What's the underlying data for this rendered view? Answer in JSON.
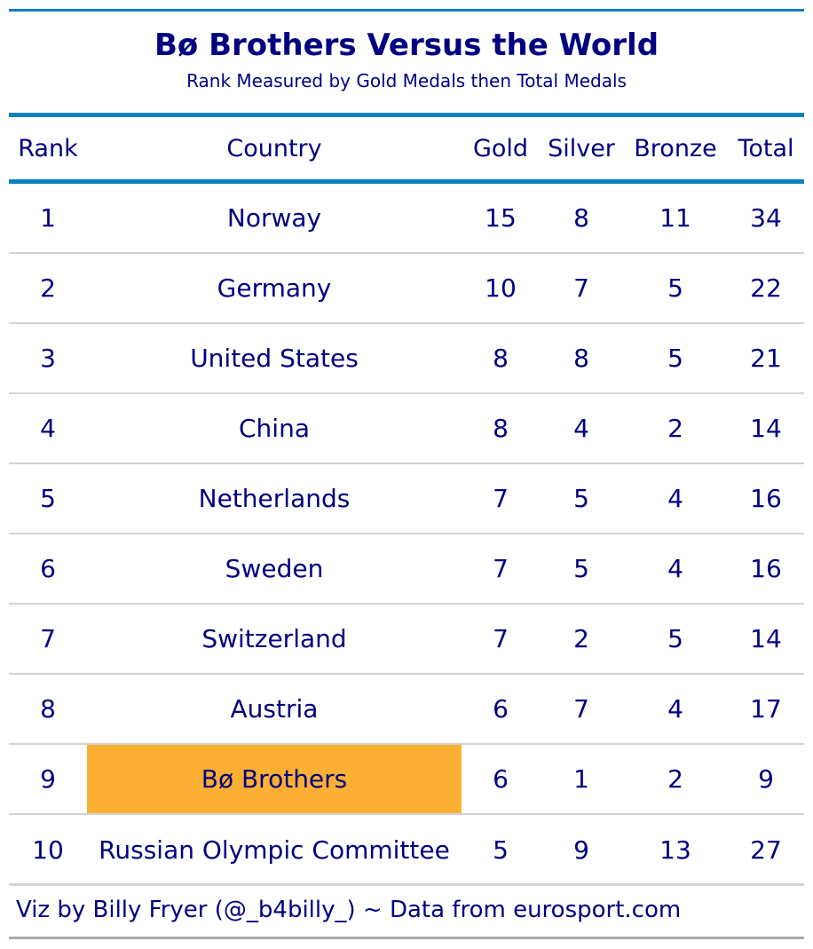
{
  "chart_data": {
    "type": "table",
    "title": "Bø Brothers Versus the World",
    "subtitle": "Rank Measured by Gold Medals then Total Medals",
    "columns": [
      "Rank",
      "Country",
      "Gold",
      "Silver",
      "Bronze",
      "Total"
    ],
    "rows": [
      {
        "rank": "1",
        "country": "Norway",
        "gold": "15",
        "silver": "8",
        "bronze": "11",
        "total": "34"
      },
      {
        "rank": "2",
        "country": "Germany",
        "gold": "10",
        "silver": "7",
        "bronze": "5",
        "total": "22"
      },
      {
        "rank": "3",
        "country": "United States",
        "gold": "8",
        "silver": "8",
        "bronze": "5",
        "total": "21"
      },
      {
        "rank": "4",
        "country": "China",
        "gold": "8",
        "silver": "4",
        "bronze": "2",
        "total": "14"
      },
      {
        "rank": "5",
        "country": "Netherlands",
        "gold": "7",
        "silver": "5",
        "bronze": "4",
        "total": "16"
      },
      {
        "rank": "6",
        "country": "Sweden",
        "gold": "7",
        "silver": "5",
        "bronze": "4",
        "total": "16"
      },
      {
        "rank": "7",
        "country": "Switzerland",
        "gold": "7",
        "silver": "2",
        "bronze": "5",
        "total": "14"
      },
      {
        "rank": "8",
        "country": "Austria",
        "gold": "6",
        "silver": "7",
        "bronze": "4",
        "total": "17"
      },
      {
        "rank": "9",
        "country": "Bø Brothers",
        "gold": "6",
        "silver": "1",
        "bronze": "2",
        "total": "9",
        "highlight": true
      },
      {
        "rank": "10",
        "country": "Russian Olympic Committee",
        "gold": "5",
        "silver": "9",
        "bronze": "13",
        "total": "27"
      }
    ],
    "caption": "Viz by Billy Fryer (@_b4billy_) ~ Data from eurosport.com"
  },
  "colors": {
    "text": "#000080",
    "accent_rule": "#0a7fc2",
    "highlight": "#fbb034",
    "row_divider": "#d3d3d3"
  }
}
